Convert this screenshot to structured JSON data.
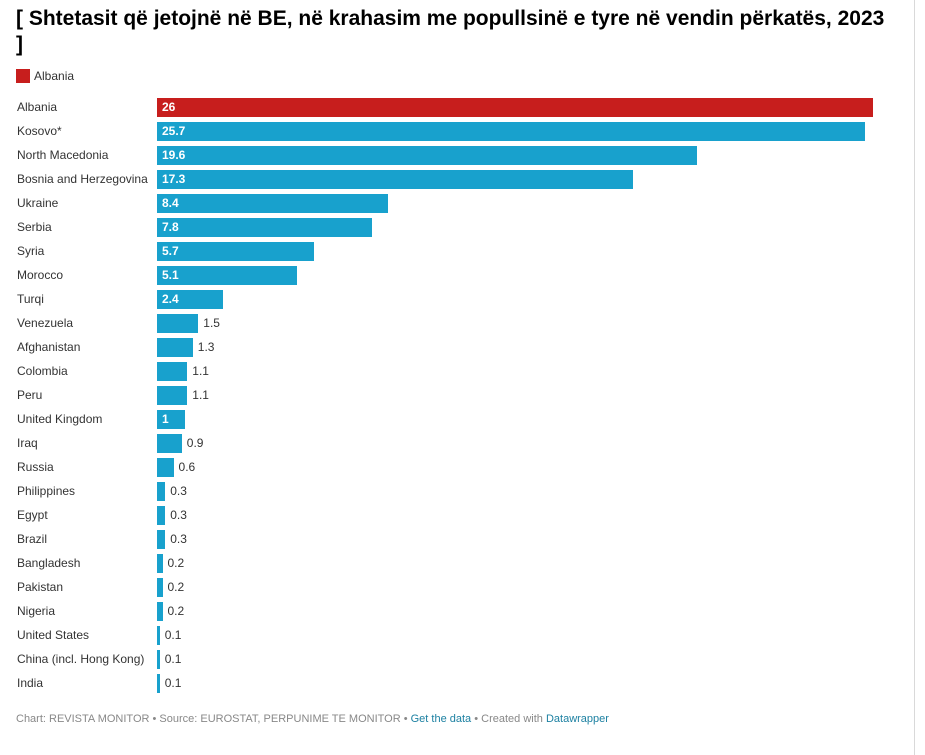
{
  "title": "[ Shtetasit që jetojnë në BE, në krahasim me popullsinë e tyre në vendin përkatës, 2023 ]",
  "colors": {
    "highlight": "#c71e1d",
    "bar": "#18a1cd"
  },
  "legend": {
    "label": "Albania",
    "color": "#c71e1d"
  },
  "footer": {
    "chart_prefix": "Chart: REVISTA MONITOR",
    "source": "Source: EUROSTAT, PERPUNIME TE MONITOR",
    "get_data": "Get the data",
    "created_with": "Created with",
    "tool": "Datawrapper",
    "separator": " • "
  },
  "chart_data": {
    "type": "bar",
    "orientation": "horizontal",
    "title": "[ Shtetasit që jetojnë në BE, në krahasim me popullsinë e tyre në vendin përkatës, 2023 ]",
    "xlim": [
      0,
      26
    ],
    "grid": false,
    "legend": "top-left",
    "highlight_category": "Albania",
    "categories": [
      "Albania",
      "Kosovo*",
      "North Macedonia",
      "Bosnia and Herzegovina",
      "Ukraine",
      "Serbia",
      "Syria",
      "Morocco",
      "Turqi",
      "Venezuela",
      "Afghanistan",
      "Colombia",
      "Peru",
      "United Kingdom",
      "Iraq",
      "Russia",
      "Philippines",
      "Egypt",
      "Brazil",
      "Bangladesh",
      "Pakistan",
      "Nigeria",
      "United States",
      "China (incl. Hong Kong)",
      "India"
    ],
    "values": [
      26,
      25.7,
      19.6,
      17.3,
      8.4,
      7.8,
      5.7,
      5.1,
      2.4,
      1.5,
      1.3,
      1.1,
      1.1,
      1,
      0.9,
      0.6,
      0.3,
      0.3,
      0.3,
      0.2,
      0.2,
      0.2,
      0.1,
      0.1,
      0.1
    ]
  }
}
